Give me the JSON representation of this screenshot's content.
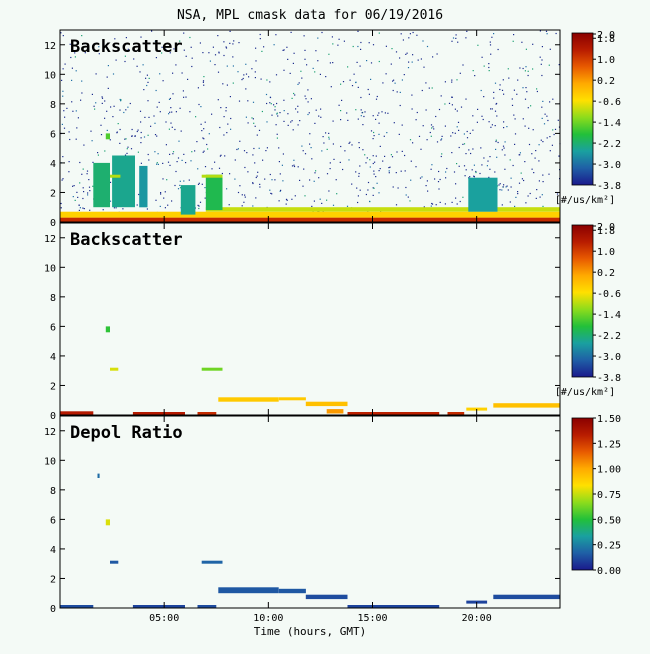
{
  "title": "NSA, MPL cmask data for 06/19/2016",
  "xlabel": "Time (hours, GMT)",
  "colors": {
    "background": "#f4faf6",
    "frame": "#000000",
    "rainbow": [
      "#1a1a8c",
      "#1f5fa6",
      "#1aa0a0",
      "#22c03a",
      "#8cdc1c",
      "#ffe000",
      "#ffaa00",
      "#e85a00",
      "#b81c00",
      "#8a0000"
    ]
  },
  "chart_data": [
    {
      "type": "heatmap",
      "panel_label": "Backscatter",
      "xaxis": {
        "unit": "hours GMT",
        "range": [
          0,
          24
        ],
        "ticks": [
          5,
          10,
          15,
          20
        ],
        "tick_labels": [
          "05:00",
          "10:00",
          "15:00",
          "20:00"
        ]
      },
      "yaxis": {
        "range": [
          0,
          13
        ],
        "ticks": [
          0,
          2,
          4,
          6,
          8,
          10,
          12
        ],
        "tick_labels": [
          "0",
          "2",
          "4",
          "6",
          "8",
          "10",
          "12"
        ]
      },
      "colorbar": {
        "label": "[#/us/km²]",
        "range": [
          -3.8,
          2.0
        ],
        "tick_labels": [
          "2.0",
          "1.8",
          "1.0",
          "0.2",
          "-0.6",
          "-1.4",
          "-2.2",
          "-3.0",
          "-3.8"
        ]
      },
      "noise": {
        "description": "sparse dark-blue speckle",
        "density_low": 0.45,
        "density_high": 0.25
      },
      "features": [
        {
          "x": [
            0.0,
            24.0
          ],
          "y": [
            0.0,
            0.3
          ],
          "value": 1.2
        },
        {
          "x": [
            0.0,
            24.0
          ],
          "y": [
            0.3,
            0.7
          ],
          "value": -0.4
        },
        {
          "x": [
            7.0,
            24.0
          ],
          "y": [
            0.7,
            1.0
          ],
          "value": -0.9
        },
        {
          "x": [
            1.6,
            2.4
          ],
          "y": [
            1.0,
            4.0
          ],
          "value": -2.2
        },
        {
          "x": [
            2.5,
            3.6
          ],
          "y": [
            1.0,
            4.5
          ],
          "value": -2.4
        },
        {
          "x": [
            3.8,
            4.2
          ],
          "y": [
            1.0,
            3.8
          ],
          "value": -2.6
        },
        {
          "x": [
            5.8,
            6.5
          ],
          "y": [
            0.5,
            2.5
          ],
          "value": -2.4
        },
        {
          "x": [
            7.0,
            7.8
          ],
          "y": [
            0.8,
            3.2
          ],
          "value": -2.0
        },
        {
          "x": [
            2.2,
            2.4
          ],
          "y": [
            5.6,
            6.0
          ],
          "value": -1.6
        },
        {
          "x": [
            2.4,
            2.9
          ],
          "y": [
            3.0,
            3.2
          ],
          "value": -1.0
        },
        {
          "x": [
            6.8,
            7.8
          ],
          "y": [
            3.0,
            3.2
          ],
          "value": -1.0
        },
        {
          "x": [
            19.6,
            21.0
          ],
          "y": [
            0.7,
            3.0
          ],
          "value": -2.5
        }
      ]
    },
    {
      "type": "heatmap",
      "panel_label": "Backscatter",
      "xaxis": {
        "unit": "hours GMT",
        "range": [
          0,
          24
        ],
        "ticks": [
          5,
          10,
          15,
          20
        ],
        "tick_labels": [
          "05:00",
          "10:00",
          "15:00",
          "20:00"
        ]
      },
      "yaxis": {
        "range": [
          0,
          13
        ],
        "ticks": [
          0,
          2,
          4,
          6,
          8,
          10,
          12
        ],
        "tick_labels": [
          "0",
          "2",
          "4",
          "6",
          "8",
          "10",
          "12"
        ]
      },
      "colorbar": {
        "label": "[#/us/km²]",
        "range": [
          -3.8,
          2.0
        ],
        "tick_labels": [
          "2.0",
          "1.8",
          "1.0",
          "0.2",
          "-0.6",
          "-1.4",
          "-2.2",
          "-3.0",
          "-3.8"
        ]
      },
      "features": [
        {
          "x": [
            0.0,
            1.6
          ],
          "y": [
            0.0,
            0.25
          ],
          "value": 1.4
        },
        {
          "x": [
            3.5,
            6.0
          ],
          "y": [
            0.0,
            0.2
          ],
          "value": 1.4
        },
        {
          "x": [
            6.6,
            7.5
          ],
          "y": [
            0.0,
            0.2
          ],
          "value": 1.2
        },
        {
          "x": [
            13.8,
            18.2
          ],
          "y": [
            0.0,
            0.2
          ],
          "value": 1.3
        },
        {
          "x": [
            18.6,
            19.4
          ],
          "y": [
            0.0,
            0.2
          ],
          "value": 1.2
        },
        {
          "x": [
            7.6,
            10.5
          ],
          "y": [
            0.9,
            1.2
          ],
          "value": -0.3
        },
        {
          "x": [
            10.5,
            11.8
          ],
          "y": [
            1.0,
            1.2
          ],
          "value": -0.3
        },
        {
          "x": [
            11.8,
            13.8
          ],
          "y": [
            0.6,
            0.9
          ],
          "value": -0.2
        },
        {
          "x": [
            12.8,
            13.6
          ],
          "y": [
            0.1,
            0.4
          ],
          "value": 0.2
        },
        {
          "x": [
            19.5,
            20.5
          ],
          "y": [
            0.3,
            0.5
          ],
          "value": -0.4
        },
        {
          "x": [
            20.8,
            24.0
          ],
          "y": [
            0.5,
            0.8
          ],
          "value": -0.2
        },
        {
          "x": [
            2.2,
            2.4
          ],
          "y": [
            5.6,
            6.0
          ],
          "value": -1.8
        },
        {
          "x": [
            2.4,
            2.8
          ],
          "y": [
            3.0,
            3.2
          ],
          "value": -0.8
        },
        {
          "x": [
            6.8,
            7.8
          ],
          "y": [
            3.0,
            3.2
          ],
          "value": -1.4
        }
      ]
    },
    {
      "type": "heatmap",
      "panel_label": "Depol Ratio",
      "xaxis": {
        "unit": "hours GMT",
        "range": [
          0,
          24
        ],
        "ticks": [
          5,
          10,
          15,
          20
        ],
        "tick_labels": [
          "05:00",
          "10:00",
          "15:00",
          "20:00"
        ]
      },
      "yaxis": {
        "range": [
          0,
          13
        ],
        "ticks": [
          0,
          2,
          4,
          6,
          8,
          10,
          12
        ],
        "tick_labels": [
          "0",
          "2",
          "4",
          "6",
          "8",
          "10",
          "12"
        ]
      },
      "colorbar": {
        "label": "",
        "range": [
          0.0,
          1.5
        ],
        "tick_labels": [
          "1.50",
          "1.25",
          "1.00",
          "0.75",
          "0.50",
          "0.25",
          "0.00"
        ]
      },
      "features": [
        {
          "x": [
            0.0,
            1.6
          ],
          "y": [
            0.0,
            0.2
          ],
          "value": 0.12
        },
        {
          "x": [
            3.5,
            6.0
          ],
          "y": [
            0.0,
            0.2
          ],
          "value": 0.1
        },
        {
          "x": [
            6.6,
            7.5
          ],
          "y": [
            0.0,
            0.2
          ],
          "value": 0.12
        },
        {
          "x": [
            13.8,
            18.2
          ],
          "y": [
            0.0,
            0.2
          ],
          "value": 0.1
        },
        {
          "x": [
            7.6,
            10.5
          ],
          "y": [
            1.0,
            1.4
          ],
          "value": 0.15
        },
        {
          "x": [
            10.5,
            11.8
          ],
          "y": [
            1.0,
            1.3
          ],
          "value": 0.15
        },
        {
          "x": [
            11.8,
            13.8
          ],
          "y": [
            0.6,
            0.9
          ],
          "value": 0.12
        },
        {
          "x": [
            19.5,
            20.5
          ],
          "y": [
            0.3,
            0.5
          ],
          "value": 0.1
        },
        {
          "x": [
            20.8,
            24.0
          ],
          "y": [
            0.6,
            0.9
          ],
          "value": 0.12
        },
        {
          "x": [
            2.2,
            2.4
          ],
          "y": [
            5.6,
            6.0
          ],
          "value": 0.78
        },
        {
          "x": [
            2.4,
            2.8
          ],
          "y": [
            3.0,
            3.2
          ],
          "value": 0.15
        },
        {
          "x": [
            6.8,
            7.8
          ],
          "y": [
            3.0,
            3.2
          ],
          "value": 0.18
        },
        {
          "x": [
            1.8,
            1.9
          ],
          "y": [
            8.8,
            9.1
          ],
          "value": 0.2
        }
      ]
    }
  ]
}
